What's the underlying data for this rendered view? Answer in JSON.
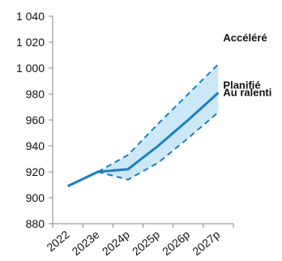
{
  "chart_data": {
    "type": "line",
    "title": "",
    "xlabel": "",
    "ylabel": "",
    "categories": [
      "2022",
      "2023e",
      "2024p",
      "2025p",
      "2026p",
      "2027p"
    ],
    "ylim": [
      880,
      1040
    ],
    "yticks": [
      880,
      900,
      920,
      940,
      960,
      980,
      "1 000",
      "1 020",
      "1 040"
    ],
    "grid": false,
    "legend": "none",
    "series": [
      {
        "name": "Planifié",
        "style": "solid",
        "values": [
          909,
          920,
          922,
          940,
          960,
          981
        ]
      },
      {
        "name": "Accéléré",
        "style": "dashed",
        "values": [
          null,
          920,
          933,
          957,
          980,
          1003
        ]
      },
      {
        "name": "Au ralenti",
        "style": "dashed",
        "values": [
          null,
          920,
          914,
          927,
          946,
          966
        ]
      }
    ],
    "band": {
      "between": [
        "Au ralenti",
        "Accéléré"
      ],
      "color": "#cce8f7"
    },
    "colors": {
      "line": "#1a7fc1",
      "band": "#cce8f7",
      "axis": "#888888"
    }
  }
}
